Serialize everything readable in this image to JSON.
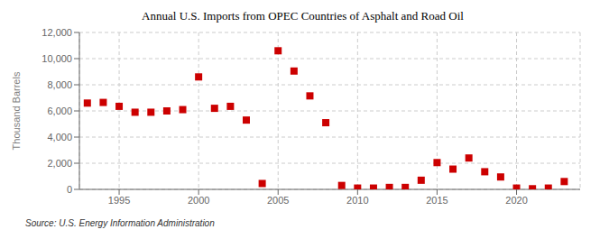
{
  "chart_data": {
    "type": "scatter",
    "title": "Annual U.S. Imports from OPEC Countries of Asphalt and Road Oil",
    "ylabel": "Thousand Barrels",
    "annotations": [
      "Source: U.S. Energy Information Administration"
    ],
    "x": [
      1993,
      1994,
      1995,
      1996,
      1997,
      1998,
      1999,
      2000,
      2001,
      2002,
      2003,
      2004,
      2005,
      2006,
      2007,
      2008,
      2009,
      2010,
      2011,
      2012,
      2013,
      2014,
      2015,
      2016,
      2017,
      2018,
      2019,
      2020,
      2021,
      2022,
      2023
    ],
    "values": [
      6600,
      6650,
      6350,
      5900,
      5900,
      6000,
      6100,
      8600,
      6200,
      6350,
      5300,
      450,
      10600,
      9050,
      7150,
      5100,
      300,
      100,
      100,
      150,
      150,
      700,
      2050,
      1550,
      2400,
      1350,
      950,
      100,
      50,
      100,
      600
    ],
    "color": "#cc0000",
    "marker": "square",
    "xlim": [
      1992.5,
      2024
    ],
    "xticks": [
      1995,
      2000,
      2005,
      2010,
      2015,
      2020
    ],
    "ylim": [
      0,
      12000
    ],
    "yticks": [
      0,
      {
        "value": 2000,
        "label": "2,000"
      },
      {
        "value": 4000,
        "label": "4,000"
      },
      {
        "value": 6000,
        "label": "6,000"
      },
      {
        "value": 8000,
        "label": "8,000"
      },
      {
        "value": 10000,
        "label": "10,000"
      },
      {
        "value": 12000,
        "label": "12,000"
      }
    ],
    "grid": true
  }
}
